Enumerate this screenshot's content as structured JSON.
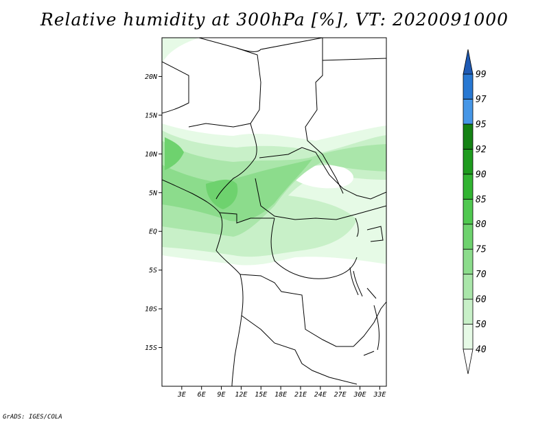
{
  "title": "Relative humidity at 300hPa [%], VT: 2020091000",
  "credit": "GrADS: IGES/COLA",
  "map": {
    "lon_range": [
      0,
      34
    ],
    "lat_range": [
      -20,
      25
    ],
    "lat_ticks": [
      {
        "value": 20,
        "label": "20N"
      },
      {
        "value": 15,
        "label": "15N"
      },
      {
        "value": 10,
        "label": "10N"
      },
      {
        "value": 5,
        "label": "5N"
      },
      {
        "value": 0,
        "label": "EQ"
      },
      {
        "value": -5,
        "label": "5S"
      },
      {
        "value": -10,
        "label": "10S"
      },
      {
        "value": -15,
        "label": "15S"
      }
    ],
    "lon_ticks": [
      {
        "value": 3,
        "label": "3E"
      },
      {
        "value": 6,
        "label": "6E"
      },
      {
        "value": 9,
        "label": "9E"
      },
      {
        "value": 12,
        "label": "12E"
      },
      {
        "value": 15,
        "label": "15E"
      },
      {
        "value": 18,
        "label": "18E"
      },
      {
        "value": 21,
        "label": "21E"
      },
      {
        "value": 24,
        "label": "24E"
      },
      {
        "value": 27,
        "label": "27E"
      },
      {
        "value": 30,
        "label": "30E"
      },
      {
        "value": 33,
        "label": "33E"
      }
    ]
  },
  "colorbar": {
    "levels": [
      {
        "label": "40",
        "color": "#ffffff"
      },
      {
        "label": "50",
        "color": "#e6fae6"
      },
      {
        "label": "60",
        "color": "#c8f0c8"
      },
      {
        "label": "70",
        "color": "#aae6aa"
      },
      {
        "label": "75",
        "color": "#8cdc8c"
      },
      {
        "label": "80",
        "color": "#6ed26e"
      },
      {
        "label": "85",
        "color": "#50c850"
      },
      {
        "label": "90",
        "color": "#32b432"
      },
      {
        "label": "92",
        "color": "#1e9b1e"
      },
      {
        "label": "95",
        "color": "#148214"
      },
      {
        "label": "97",
        "color": "#4696e6"
      },
      {
        "label": "99",
        "color": "#2878d2"
      }
    ],
    "top_color": "#1e5ab4"
  }
}
